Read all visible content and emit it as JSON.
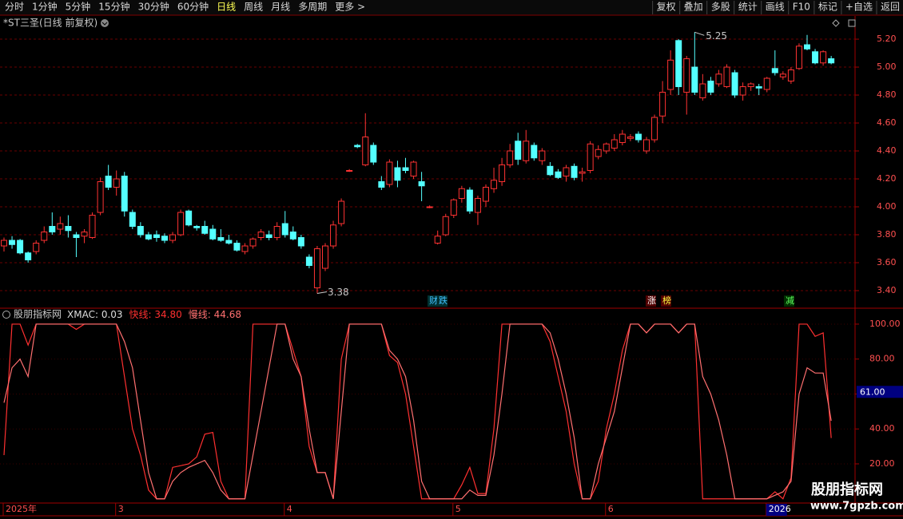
{
  "toolbar": {
    "left": [
      "分时",
      "1分钟",
      "5分钟",
      "15分钟",
      "30分钟",
      "60分钟",
      "日线",
      "周线",
      "月线",
      "多周期",
      "更多 >"
    ],
    "active": "日线",
    "right": [
      "复权",
      "叠加",
      "多股",
      "统计",
      "画线",
      "F10",
      "标记",
      "+自选",
      "返回"
    ]
  },
  "legend_separator": ": ",
  "chart_data": [
    {
      "type": "candlestick",
      "title": "*ST三圣(日线 前复权)",
      "up_color": "#ff3232",
      "down_color": "#54ffff",
      "ylim": [
        3.28,
        5.366
      ],
      "yticks": [
        {
          "value": 5.2,
          "label": "5.20"
        },
        {
          "value": 5.0,
          "label": "5.00"
        },
        {
          "value": 4.8,
          "label": "4.80"
        },
        {
          "value": 4.6,
          "label": "4.60"
        },
        {
          "value": 4.4,
          "label": "4.40"
        },
        {
          "value": 4.2,
          "label": "4.20"
        },
        {
          "value": 4.0,
          "label": "4.00"
        },
        {
          "value": 3.8,
          "label": "3.80"
        },
        {
          "value": 3.6,
          "label": "3.60"
        },
        {
          "value": 3.4,
          "label": "3.40"
        }
      ],
      "grid": true,
      "event_tags": [
        "财",
        "跌",
        "涨",
        "榜",
        "减"
      ],
      "candles": [
        [
          3.72,
          3.78,
          3.68,
          3.76
        ],
        [
          3.76,
          3.79,
          3.7,
          3.73
        ],
        [
          3.76,
          3.77,
          3.66,
          3.67
        ],
        [
          3.67,
          3.68,
          3.6,
          3.62
        ],
        [
          3.68,
          3.76,
          3.66,
          3.74
        ],
        [
          3.76,
          3.86,
          3.74,
          3.82
        ],
        [
          3.86,
          3.96,
          3.8,
          3.82
        ],
        [
          3.84,
          3.93,
          3.8,
          3.88
        ],
        [
          3.86,
          3.94,
          3.78,
          3.83
        ],
        [
          3.8,
          3.82,
          3.64,
          3.78
        ],
        [
          3.79,
          3.84,
          3.74,
          3.82
        ],
        [
          3.78,
          3.96,
          3.77,
          3.94
        ],
        [
          3.96,
          4.21,
          3.94,
          4.18
        ],
        [
          4.22,
          4.3,
          4.12,
          4.14
        ],
        [
          4.14,
          4.26,
          4.08,
          4.2
        ],
        [
          4.22,
          4.25,
          3.93,
          3.97
        ],
        [
          3.96,
          3.98,
          3.84,
          3.86
        ],
        [
          3.86,
          3.89,
          3.78,
          3.8
        ],
        [
          3.8,
          3.82,
          3.76,
          3.77
        ],
        [
          3.8,
          3.83,
          3.75,
          3.78
        ],
        [
          3.79,
          3.81,
          3.74,
          3.76
        ],
        [
          3.76,
          3.82,
          3.74,
          3.8
        ],
        [
          3.8,
          3.98,
          3.79,
          3.96
        ],
        [
          3.97,
          3.98,
          3.86,
          3.87
        ],
        [
          3.86,
          3.87,
          3.83,
          3.85
        ],
        [
          3.86,
          3.9,
          3.8,
          3.81
        ],
        [
          3.84,
          3.87,
          3.76,
          3.77
        ],
        [
          3.78,
          3.84,
          3.75,
          3.76
        ],
        [
          3.76,
          3.8,
          3.73,
          3.74
        ],
        [
          3.74,
          3.76,
          3.68,
          3.69
        ],
        [
          3.68,
          3.74,
          3.66,
          3.72
        ],
        [
          3.72,
          3.78,
          3.7,
          3.77
        ],
        [
          3.78,
          3.84,
          3.76,
          3.82
        ],
        [
          3.8,
          3.83,
          3.76,
          3.78
        ],
        [
          3.78,
          3.89,
          3.76,
          3.86
        ],
        [
          3.88,
          3.97,
          3.78,
          3.8
        ],
        [
          3.82,
          3.86,
          3.76,
          3.77
        ],
        [
          3.78,
          3.8,
          3.7,
          3.72
        ],
        [
          3.64,
          3.66,
          3.56,
          3.58
        ],
        [
          3.42,
          3.72,
          3.38,
          3.7
        ],
        [
          3.56,
          3.74,
          3.54,
          3.72
        ],
        [
          3.72,
          3.9,
          3.7,
          3.87
        ],
        [
          3.88,
          4.06,
          3.86,
          4.04
        ],
        [
          4.26,
          4.27,
          4.25,
          4.26
        ],
        [
          4.44,
          4.45,
          4.42,
          4.43
        ],
        [
          4.3,
          4.67,
          4.29,
          4.5
        ],
        [
          4.44,
          4.46,
          4.3,
          4.32
        ],
        [
          4.18,
          4.22,
          4.12,
          4.14
        ],
        [
          4.16,
          4.34,
          4.14,
          4.32
        ],
        [
          4.28,
          4.33,
          4.14,
          4.19
        ],
        [
          4.28,
          4.35,
          4.24,
          4.26
        ],
        [
          4.22,
          4.33,
          4.2,
          4.32
        ],
        [
          4.18,
          4.25,
          4.04,
          4.15
        ],
        [
          4.0,
          4.01,
          3.99,
          4.0
        ],
        [
          3.74,
          3.83,
          3.73,
          3.79
        ],
        [
          3.8,
          3.95,
          3.79,
          3.93
        ],
        [
          3.94,
          4.06,
          3.92,
          4.05
        ],
        [
          4.06,
          4.15,
          4.03,
          4.13
        ],
        [
          4.12,
          4.14,
          3.95,
          3.97
        ],
        [
          3.96,
          4.08,
          3.87,
          4.06
        ],
        [
          4.04,
          4.16,
          4.0,
          4.14
        ],
        [
          4.13,
          4.28,
          4.1,
          4.19
        ],
        [
          4.18,
          4.35,
          4.15,
          4.3
        ],
        [
          4.3,
          4.45,
          4.28,
          4.4
        ],
        [
          4.47,
          4.53,
          4.3,
          4.34
        ],
        [
          4.33,
          4.55,
          4.31,
          4.47
        ],
        [
          4.44,
          4.46,
          4.33,
          4.35
        ],
        [
          4.33,
          4.42,
          4.3,
          4.4
        ],
        [
          4.29,
          4.32,
          4.22,
          4.23
        ],
        [
          4.25,
          4.27,
          4.2,
          4.21
        ],
        [
          4.22,
          4.3,
          4.18,
          4.28
        ],
        [
          4.29,
          4.31,
          4.19,
          4.21
        ],
        [
          4.24,
          4.28,
          4.18,
          4.25
        ],
        [
          4.26,
          4.47,
          4.24,
          4.45
        ],
        [
          4.36,
          4.44,
          4.34,
          4.41
        ],
        [
          4.4,
          4.46,
          4.38,
          4.45
        ],
        [
          4.42,
          4.52,
          4.4,
          4.48
        ],
        [
          4.46,
          4.55,
          4.44,
          4.52
        ],
        [
          4.49,
          4.52,
          4.47,
          4.5
        ],
        [
          4.52,
          4.54,
          4.46,
          4.48
        ],
        [
          4.4,
          4.5,
          4.38,
          4.48
        ],
        [
          4.48,
          4.66,
          4.46,
          4.64
        ],
        [
          4.65,
          4.9,
          4.6,
          4.82
        ],
        [
          4.84,
          5.12,
          4.8,
          5.05
        ],
        [
          5.19,
          5.2,
          4.8,
          4.86
        ],
        [
          4.82,
          5.08,
          4.66,
          5.06
        ],
        [
          5.0,
          5.25,
          4.8,
          4.82
        ],
        [
          4.78,
          4.95,
          4.76,
          4.88
        ],
        [
          4.9,
          4.93,
          4.8,
          4.82
        ],
        [
          4.88,
          4.98,
          4.86,
          4.95
        ],
        [
          4.86,
          5.02,
          4.85,
          5.0
        ],
        [
          4.96,
          4.98,
          4.78,
          4.8
        ],
        [
          4.8,
          4.89,
          4.76,
          4.86
        ],
        [
          4.86,
          4.89,
          4.83,
          4.88
        ],
        [
          4.86,
          4.88,
          4.8,
          4.85
        ],
        [
          4.84,
          4.93,
          4.82,
          4.92
        ],
        [
          4.99,
          5.12,
          4.94,
          4.96
        ],
        [
          4.93,
          4.97,
          4.91,
          4.95
        ],
        [
          4.9,
          5.0,
          4.88,
          4.98
        ],
        [
          4.99,
          5.17,
          4.98,
          5.15
        ],
        [
          5.16,
          5.23,
          5.12,
          5.13
        ],
        [
          5.11,
          5.13,
          5.02,
          5.03
        ],
        [
          5.03,
          5.12,
          5.01,
          5.11
        ],
        [
          5.06,
          5.08,
          5.02,
          5.03
        ]
      ]
    },
    {
      "type": "line",
      "source": "股朋指标网",
      "indicator": {
        "name": "XMAC",
        "value": 0.03
      },
      "ylim": [
        -1.5,
        105
      ],
      "yticks": [
        {
          "value": 100,
          "label": "100.00"
        },
        {
          "value": 80,
          "label": "80.00"
        },
        {
          "value": 60,
          "label": "60.00"
        },
        {
          "value": 40,
          "label": "40.00"
        },
        {
          "value": 20,
          "label": "20.00"
        }
      ],
      "cursor": {
        "value": 61,
        "label": "61.00"
      },
      "categories": [
        "2025年",
        null,
        null,
        null,
        null,
        null,
        null,
        null,
        null,
        null,
        null,
        null,
        null,
        null,
        "3",
        null,
        null,
        null,
        null,
        null,
        null,
        null,
        null,
        null,
        null,
        null,
        null,
        null,
        null,
        null,
        null,
        null,
        null,
        null,
        null,
        "4",
        null,
        null,
        null,
        null,
        null,
        null,
        null,
        null,
        null,
        null,
        null,
        null,
        null,
        null,
        null,
        null,
        null,
        null,
        null,
        null,
        "5",
        null,
        null,
        null,
        null,
        null,
        null,
        null,
        null,
        null,
        null,
        null,
        null,
        null,
        null,
        null,
        null,
        null,
        null,
        "6",
        null,
        null,
        null,
        null,
        null,
        null,
        null,
        null,
        null,
        null,
        null,
        null,
        null,
        null,
        null,
        null,
        null,
        null,
        null,
        "2026",
        null,
        null,
        null,
        null,
        null,
        null,
        null,
        null
      ],
      "series": [
        {
          "name": "快线",
          "color": "#ff3030",
          "readout": "34.80",
          "values": [
            25,
            100,
            100,
            88,
            100,
            100,
            100,
            100,
            100,
            97,
            100,
            100,
            100,
            100,
            100,
            70,
            40,
            25,
            5,
            0,
            0,
            18,
            19,
            20,
            24,
            37,
            38,
            10,
            0,
            0,
            0,
            100,
            100,
            100,
            100,
            100,
            85,
            70,
            30,
            15,
            15,
            0,
            80,
            100,
            100,
            100,
            100,
            100,
            82,
            78,
            60,
            30,
            0,
            0,
            0,
            0,
            0,
            8,
            18,
            3,
            3,
            40,
            100,
            100,
            100,
            100,
            100,
            100,
            90,
            70,
            50,
            20,
            0,
            0,
            10,
            40,
            60,
            85,
            100,
            100,
            95,
            100,
            100,
            100,
            95,
            100,
            100,
            0,
            0,
            0,
            0,
            0,
            0,
            0,
            0,
            0,
            4,
            0,
            12,
            100,
            100,
            93,
            95,
            34.8
          ]
        },
        {
          "name": "慢线",
          "color": "#ff7070",
          "readout": "44.68",
          "values": [
            55,
            75,
            80,
            70,
            100,
            100,
            100,
            100,
            100,
            100,
            100,
            100,
            100,
            100,
            100,
            90,
            75,
            45,
            15,
            0,
            0,
            10,
            15,
            18,
            20,
            22,
            15,
            5,
            0,
            0,
            0,
            25,
            50,
            75,
            100,
            100,
            80,
            70,
            40,
            15,
            15,
            0,
            50,
            100,
            100,
            100,
            100,
            100,
            85,
            80,
            70,
            45,
            10,
            0,
            0,
            0,
            0,
            0,
            5,
            2,
            2,
            25,
            60,
            100,
            100,
            100,
            100,
            100,
            95,
            80,
            60,
            35,
            0,
            0,
            20,
            35,
            50,
            75,
            100,
            100,
            95,
            100,
            100,
            100,
            95,
            100,
            100,
            70,
            60,
            45,
            25,
            0,
            0,
            0,
            0,
            0,
            2,
            4,
            10,
            60,
            75,
            72,
            72,
            44.68
          ]
        }
      ]
    }
  ],
  "watermark": {
    "name": "股朋指标网",
    "url": "www.7gpzb.com"
  }
}
